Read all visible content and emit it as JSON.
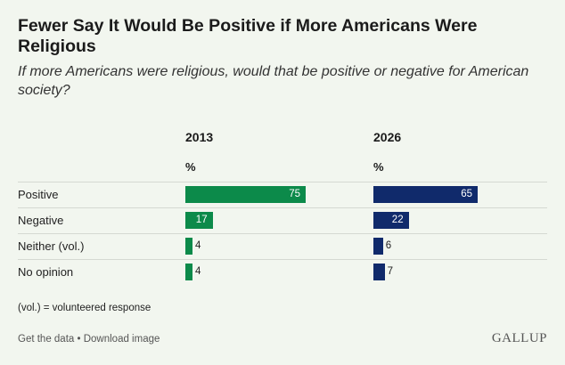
{
  "chart_data": {
    "type": "bar",
    "title": "Fewer Say It Would Be Positive if More Americans Were Religious",
    "subtitle": "If more Americans were religious, would that be positive or negative for American society?",
    "unit": "%",
    "categories": [
      "Positive",
      "Negative",
      "Neither (vol.)",
      "No opinion"
    ],
    "series": [
      {
        "name": "2013",
        "color": "#0c8a4a",
        "values": [
          75,
          17,
          4,
          4
        ]
      },
      {
        "name": "2026",
        "color": "#102a6b",
        "values": [
          65,
          22,
          6,
          7
        ]
      }
    ],
    "xlim": [
      0,
      100
    ]
  },
  "note": "(vol.) = volunteered response",
  "footer": {
    "get_data": "Get the data",
    "separator": " • ",
    "download": "Download image",
    "logo": "GALLUP"
  }
}
